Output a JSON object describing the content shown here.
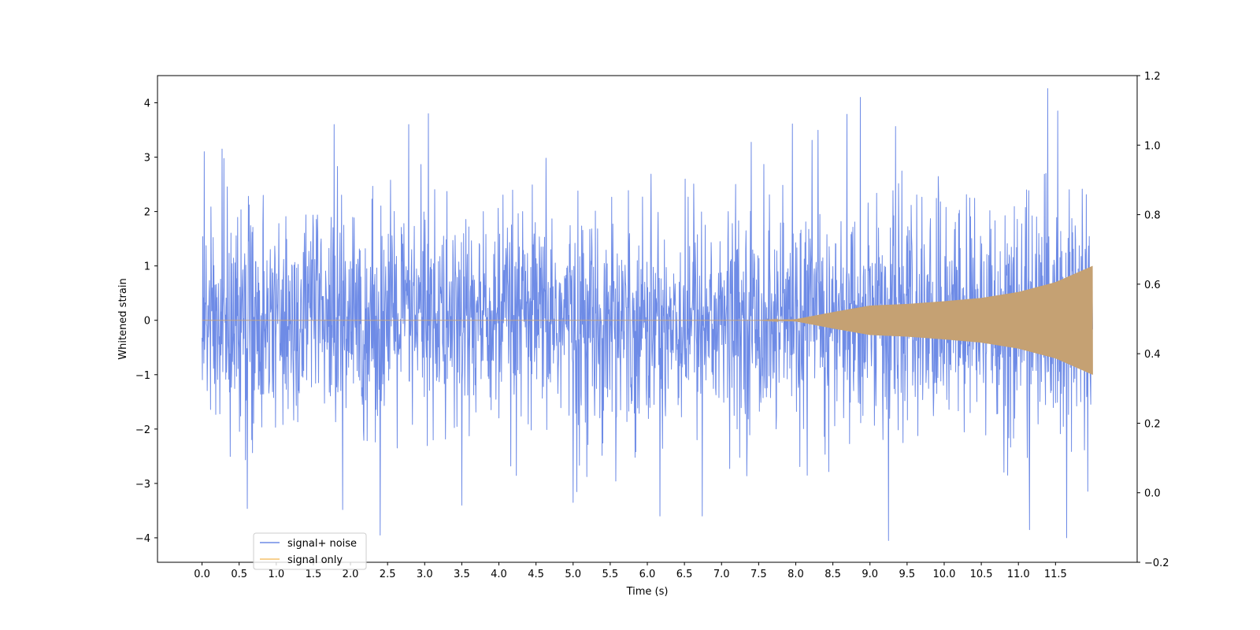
{
  "chart_data": {
    "type": "line",
    "xlabel": "Time (s)",
    "ylabel": "Whitened strain",
    "xlim": [
      -0.6,
      12.6
    ],
    "ylim": [
      -4.45,
      4.5
    ],
    "y2lim": [
      -0.2,
      1.2
    ],
    "xticks": [
      0.0,
      0.5,
      1.0,
      1.5,
      2.0,
      2.5,
      3.0,
      3.5,
      4.0,
      4.5,
      5.0,
      5.5,
      6.0,
      6.5,
      7.0,
      7.5,
      8.0,
      8.5,
      9.0,
      9.5,
      10.0,
      10.5,
      11.0,
      11.5
    ],
    "xtick_labels": [
      "0.0",
      "0.5",
      "1.0",
      "1.5",
      "2.0",
      "2.5",
      "3.0",
      "3.5",
      "4.0",
      "4.5",
      "5.0",
      "5.5",
      "6.0",
      "6.5",
      "7.0",
      "7.5",
      "8.0",
      "8.5",
      "9.0",
      "9.5",
      "10.0",
      "10.5",
      "11.0",
      "11.5"
    ],
    "yticks": [
      -4,
      -3,
      -2,
      -1,
      0,
      1,
      2,
      3,
      4
    ],
    "ytick_labels": [
      "−4",
      "−3",
      "−2",
      "−1",
      "0",
      "1",
      "2",
      "3",
      "4"
    ],
    "y2ticks": [
      -0.2,
      0.0,
      0.2,
      0.4,
      0.6,
      0.8,
      1.0,
      1.2
    ],
    "y2tick_labels": [
      "−0.2",
      "0.0",
      "0.2",
      "0.4",
      "0.6",
      "0.8",
      "1.0",
      "1.2"
    ],
    "grid": false,
    "legend_position": "lower-left",
    "series": [
      {
        "name": "signal+ noise",
        "color": "#6e8be6",
        "x_range": [
          0.0,
          12.0
        ],
        "noise_amplitude_typical": 2.3,
        "noise_peak_max": 4.1,
        "noise_peak_min": -4.0,
        "notable_peaks": [
          {
            "x": 0.03,
            "y": 3.1
          },
          {
            "x": 0.27,
            "y": 3.15
          },
          {
            "x": 1.78,
            "y": 3.6
          },
          {
            "x": 2.4,
            "y": -3.95
          },
          {
            "x": 3.05,
            "y": 3.8
          },
          {
            "x": 3.5,
            "y": -3.4
          },
          {
            "x": 5.0,
            "y": -3.35
          },
          {
            "x": 8.87,
            "y": 4.1
          },
          {
            "x": 9.25,
            "y": -4.05
          },
          {
            "x": 11.15,
            "y": -3.85
          },
          {
            "x": 11.53,
            "y": 3.85
          },
          {
            "x": 11.65,
            "y": -4.0
          }
        ]
      },
      {
        "name": "signal only",
        "color": "#f5c26b",
        "x_range": [
          0.0,
          12.0
        ],
        "envelope": [
          {
            "x": 0.0,
            "y": 0.0
          },
          {
            "x": 7.5,
            "y": 0.0
          },
          {
            "x": 8.0,
            "y": 0.02
          },
          {
            "x": 8.5,
            "y": 0.15
          },
          {
            "x": 9.0,
            "y": 0.27
          },
          {
            "x": 9.5,
            "y": 0.3
          },
          {
            "x": 10.0,
            "y": 0.35
          },
          {
            "x": 10.5,
            "y": 0.41
          },
          {
            "x": 11.0,
            "y": 0.52
          },
          {
            "x": 11.5,
            "y": 0.7
          },
          {
            "x": 12.0,
            "y": 1.0
          }
        ]
      }
    ]
  }
}
